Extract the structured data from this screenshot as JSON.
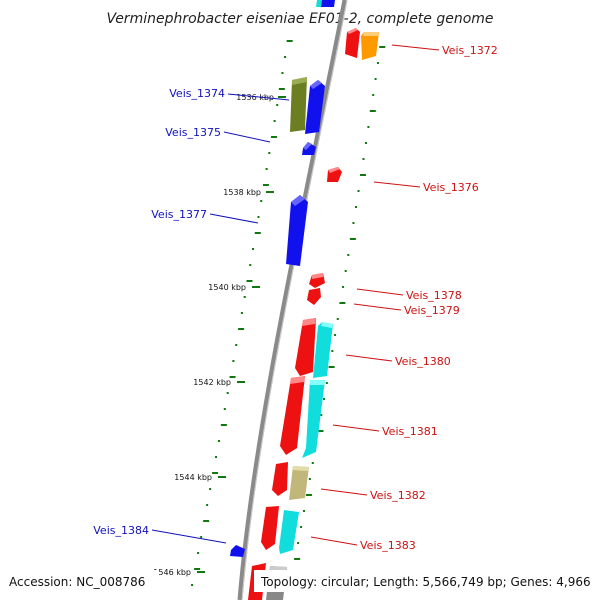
{
  "title": "Verminephrobacter eiseniae EF01-2, complete genome",
  "footer": {
    "accession": "Accession: NC_008786",
    "topology": "Topology: circular; Length: 5,566,749 bp; Genes: 4,966"
  },
  "ticks": [
    "1536 kbp",
    "1538 kbp",
    "1540 kbp",
    "1542 kbp",
    "1544 kbp",
    "1546 kbp"
  ],
  "genes_left": [
    "Veis_1374",
    "Veis_1375",
    "Veis_1377",
    "Veis_1384"
  ],
  "genes_right": [
    "Veis_1372",
    "Veis_1376",
    "Veis_1378",
    "Veis_1379",
    "Veis_1380",
    "Veis_1381",
    "Veis_1382",
    "Veis_1383"
  ],
  "colors": {
    "backbone": "#8a8a8a",
    "forward_label": "#cc1111",
    "reverse_label": "#1111bb",
    "gc_dots": "#117711",
    "red": "#ee1111",
    "blue": "#1111ee",
    "cyan": "#11dddd",
    "orange": "#ff9900",
    "olive": "#6b7f22",
    "khaki": "#c2b77a"
  }
}
